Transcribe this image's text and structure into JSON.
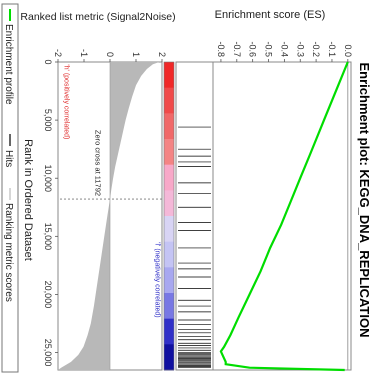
{
  "chart_data": {
    "type": "line",
    "title": "Enrichment plot: KEGG_DNA_REPLICATION",
    "es_panel": {
      "ylabel": "Enrichment score (ES)",
      "ylim": [
        -0.85,
        0.02
      ],
      "y_ticks": [
        "0.0",
        "-0.1",
        "-0.2",
        "-0.3",
        "-0.4",
        "-0.5",
        "-0.6",
        "-0.7",
        "-0.8"
      ],
      "y_tick_values": [
        0.0,
        -0.1,
        -0.2,
        -0.3,
        -0.4,
        -0.5,
        -0.6,
        -0.7,
        -0.8
      ],
      "series": [
        {
          "name": "Enrichment profile",
          "color": "#00dd00",
          "x": [
            0,
            2000,
            5000,
            8000,
            10000,
            12000,
            14000,
            16000,
            18000,
            20000,
            22000,
            23500,
            24500,
            24900,
            25200,
            25500,
            25800,
            26000,
            26300,
            26500
          ],
          "y": [
            0.0,
            -0.06,
            -0.15,
            -0.24,
            -0.3,
            -0.36,
            -0.42,
            -0.49,
            -0.55,
            -0.62,
            -0.69,
            -0.74,
            -0.78,
            -0.8,
            -0.79,
            -0.78,
            -0.77,
            -0.77,
            -0.62,
            -0.02
          ]
        }
      ]
    },
    "hits": {
      "name": "Hits",
      "color": "#000000",
      "x": [
        5600,
        7500,
        8100,
        8600,
        9000,
        10400,
        11300,
        12500,
        13800,
        14500,
        16000,
        17300,
        17800,
        18500,
        19500,
        20500,
        21000,
        21500,
        22200,
        22600,
        23000,
        23300,
        23600,
        23900,
        24200,
        24400,
        24600,
        24800,
        25000,
        25100,
        25200,
        25300,
        25400,
        25500,
        25600,
        25700,
        25800,
        25900,
        26000,
        26100,
        26200,
        26300
      ]
    },
    "ranking_panel": {
      "xlabel": "Rank in Ordered Dataset",
      "ylabel": "Ranked list metric (Signal2Noise)",
      "xlim": [
        0,
        26500
      ],
      "x_ticks": [
        "0",
        "5,000",
        "10,000",
        "15,000",
        "20,000",
        "25,000"
      ],
      "x_tick_values": [
        0,
        5000,
        10000,
        15000,
        20000,
        25000
      ],
      "ylim": [
        -2,
        2
      ],
      "y_ticks": [
        "-2",
        "-1",
        "0",
        "1",
        "2"
      ],
      "y_tick_values": [
        -2,
        -1,
        0,
        1,
        2
      ],
      "series": [
        {
          "name": "Ranking metric scores",
          "color": "#b8b8b8",
          "x": [
            0,
            200,
            600,
            1200,
            2000,
            3000,
            4000,
            5000,
            6000,
            7000,
            8000,
            9000,
            10000,
            11000,
            11792,
            12500,
            13500,
            15000,
            16500,
            18000,
            19500,
            21000,
            22500,
            23500,
            24500,
            25200,
            25800,
            26300,
            26500
          ],
          "y": [
            1.9,
            1.65,
            1.42,
            1.2,
            1.0,
            0.85,
            0.72,
            0.6,
            0.5,
            0.4,
            0.3,
            0.2,
            0.12,
            0.05,
            0.0,
            -0.05,
            -0.12,
            -0.22,
            -0.32,
            -0.42,
            -0.52,
            -0.62,
            -0.74,
            -0.86,
            -1.02,
            -1.22,
            -1.5,
            -1.88,
            -2.0
          ]
        }
      ],
      "zero_cross_rank": 11792,
      "annotations": {
        "zero_cross": "Zero cross at 11792",
        "pos_label": "'h' (positively correlated)",
        "neg_label": "'l' (negatively correlated)"
      }
    },
    "heat_stripe_colors": [
      "#f02828",
      "#f04a4a",
      "#f06868",
      "#f48484",
      "#f8a8c8",
      "#f4b8d8",
      "#d8d4f4",
      "#c4c4f4",
      "#a8a8f0",
      "#7878e4",
      "#3030c8",
      "#1010a0"
    ],
    "legend": {
      "placement": "bottom",
      "items": [
        "Enrichment profile",
        "Hits",
        "Ranking metric scores"
      ]
    }
  }
}
